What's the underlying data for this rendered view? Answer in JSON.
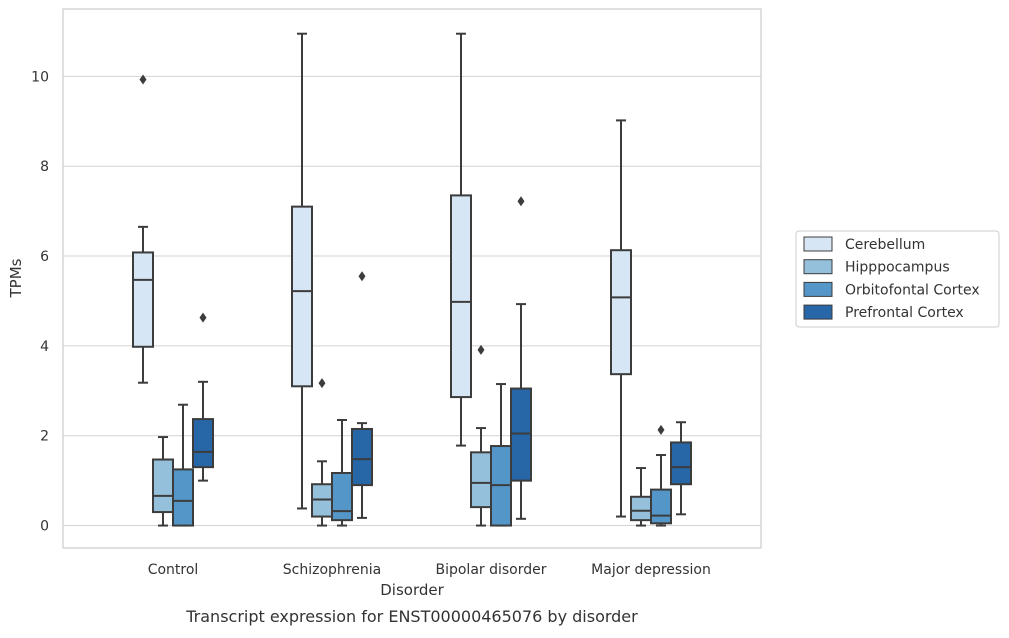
{
  "chart_data": {
    "type": "box",
    "title": "",
    "caption": "Transcript expression for ENST00000465076 by disorder",
    "xlabel": "Disorder",
    "ylabel": "TPMs",
    "ylim": [
      -0.5,
      11.5
    ],
    "yticks": [
      0,
      2,
      4,
      6,
      8,
      10
    ],
    "grid": "horizontal",
    "legend_position": "right",
    "categories": [
      "Control",
      "Schizophrenia",
      "Bipolar disorder",
      "Major depression"
    ],
    "series": [
      {
        "name": "Cerebellum",
        "color": "#d7e6f5",
        "boxes": [
          {
            "whislo": 3.18,
            "q1": 3.98,
            "med": 5.47,
            "q3": 6.08,
            "whishi": 6.65,
            "fliers": [
              9.93
            ]
          },
          {
            "whislo": 0.38,
            "q1": 3.1,
            "med": 5.22,
            "q3": 7.1,
            "whishi": 10.95,
            "fliers": []
          },
          {
            "whislo": 1.78,
            "q1": 2.86,
            "med": 4.98,
            "q3": 7.35,
            "whishi": 10.95,
            "fliers": []
          },
          {
            "whislo": 0.2,
            "q1": 3.37,
            "med": 5.08,
            "q3": 6.13,
            "whishi": 9.02,
            "fliers": []
          }
        ]
      },
      {
        "name": "Hipppocampus",
        "color": "#94c0db",
        "boxes": [
          {
            "whislo": 0.0,
            "q1": 0.3,
            "med": 0.66,
            "q3": 1.47,
            "whishi": 1.97,
            "fliers": []
          },
          {
            "whislo": 0.0,
            "q1": 0.2,
            "med": 0.58,
            "q3": 0.92,
            "whishi": 1.43,
            "fliers": [
              3.17
            ]
          },
          {
            "whislo": 0.0,
            "q1": 0.41,
            "med": 0.95,
            "q3": 1.63,
            "whishi": 2.17,
            "fliers": [
              3.91
            ]
          },
          {
            "whislo": 0.0,
            "q1": 0.12,
            "med": 0.33,
            "q3": 0.64,
            "whishi": 1.28,
            "fliers": []
          }
        ]
      },
      {
        "name": "Orbitofontal Cortex",
        "color": "#5496c8",
        "boxes": [
          {
            "whislo": 0.0,
            "q1": 0.0,
            "med": 0.55,
            "q3": 1.25,
            "whishi": 2.69,
            "fliers": []
          },
          {
            "whislo": 0.0,
            "q1": 0.12,
            "med": 0.32,
            "q3": 1.17,
            "whishi": 2.35,
            "fliers": []
          },
          {
            "whislo": 0.0,
            "q1": 0.0,
            "med": 0.9,
            "q3": 1.77,
            "whishi": 3.15,
            "fliers": []
          },
          {
            "whislo": 0.0,
            "q1": 0.05,
            "med": 0.22,
            "q3": 0.8,
            "whishi": 1.57,
            "fliers": [
              2.13
            ]
          }
        ]
      },
      {
        "name": "Prefrontal Cortex",
        "color": "#2766a7",
        "boxes": [
          {
            "whislo": 1.0,
            "q1": 1.3,
            "med": 1.64,
            "q3": 2.37,
            "whishi": 3.2,
            "fliers": [
              4.63
            ]
          },
          {
            "whislo": 0.17,
            "q1": 0.9,
            "med": 1.48,
            "q3": 2.15,
            "whishi": 2.28,
            "fliers": [
              5.55
            ]
          },
          {
            "whislo": 0.15,
            "q1": 1.0,
            "med": 2.05,
            "q3": 3.05,
            "whishi": 4.93,
            "fliers": [
              7.22
            ]
          },
          {
            "whislo": 0.25,
            "q1": 0.92,
            "med": 1.3,
            "q3": 1.85,
            "whishi": 2.3,
            "fliers": []
          }
        ]
      }
    ]
  }
}
